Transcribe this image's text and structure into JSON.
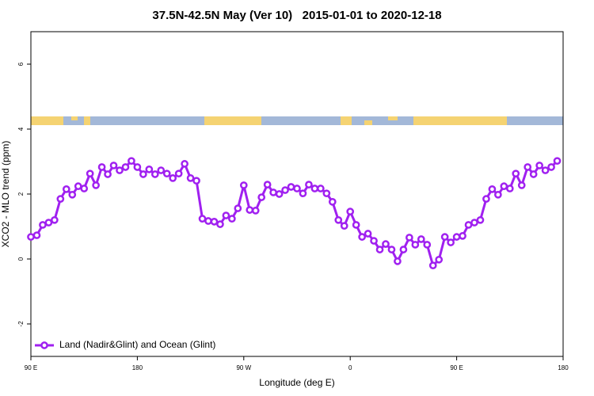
{
  "chart_data": {
    "type": "line",
    "title": "37.5N-42.5N May (Ver 10)   2015-01-01 to 2020-12-18",
    "x_label": "Longitude (deg E)",
    "y_label": "XCO2 - MLO trend (ppm)",
    "x": [
      90,
      95,
      100,
      105,
      110,
      115,
      120,
      125,
      130,
      135,
      140,
      145,
      150,
      155,
      160,
      165,
      170,
      175,
      180,
      185,
      190,
      195,
      200,
      205,
      210,
      215,
      220,
      225,
      230,
      235,
      240,
      245,
      250,
      255,
      260,
      265,
      270,
      275,
      280,
      285,
      290,
      295,
      300,
      305,
      310,
      315,
      320,
      325,
      330,
      335,
      340,
      345,
      350,
      355,
      360,
      365,
      370,
      375,
      380,
      385,
      390,
      395,
      400,
      405,
      410,
      415,
      420,
      425,
      430,
      435,
      440,
      445,
      450,
      455,
      460,
      465,
      470,
      475,
      480,
      485,
      490,
      495,
      500,
      505,
      510,
      515,
      520,
      525,
      530,
      535
    ],
    "series": [
      {
        "name": "Land (Nadir&Glint) and Ocean (Glint)",
        "color": "#a020f0",
        "values": [
          0.68,
          0.73,
          1.05,
          1.12,
          1.2,
          1.85,
          2.15,
          1.98,
          2.24,
          2.17,
          2.63,
          2.27,
          2.83,
          2.61,
          2.88,
          2.73,
          2.83,
          3.02,
          2.83,
          2.61,
          2.76,
          2.61,
          2.73,
          2.63,
          2.49,
          2.63,
          2.93,
          2.49,
          2.41,
          1.24,
          1.17,
          1.15,
          1.07,
          1.34,
          1.24,
          1.56,
          2.27,
          1.51,
          1.49,
          1.9,
          2.29,
          2.05,
          2.0,
          2.12,
          2.22,
          2.17,
          2.02,
          2.29,
          2.17,
          2.17,
          2.02,
          1.76,
          1.2,
          1.02,
          1.46,
          1.05,
          0.68,
          0.78,
          0.56,
          0.29,
          0.46,
          0.29,
          -0.07,
          0.29,
          0.66,
          0.44,
          0.61,
          0.44,
          -0.2,
          -0.02,
          0.68,
          0.51,
          0.68,
          0.71,
          1.05,
          1.12,
          1.2,
          1.85,
          2.15,
          1.98,
          2.24,
          2.17,
          2.63,
          2.27,
          2.83,
          2.61,
          2.88,
          2.73,
          2.83,
          3.02
        ]
      }
    ],
    "xlim": [
      90,
      540
    ],
    "xticks": [
      {
        "value": 90,
        "label": "90 E"
      },
      180,
      {
        "value": 270,
        "label": "90 W"
      },
      {
        "value": 360,
        "label": "0"
      },
      {
        "value": 450,
        "label": "90 E"
      },
      {
        "value": 540,
        "label": "180"
      }
    ],
    "ylim": [
      -3,
      7
    ],
    "yticks": [
      -2,
      0,
      2,
      4,
      6
    ],
    "legend": "bottom-left"
  }
}
